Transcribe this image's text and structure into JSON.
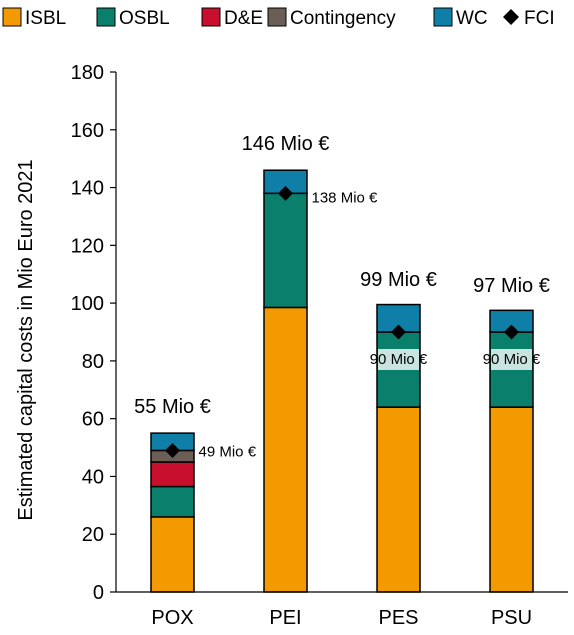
{
  "chart_data": {
    "type": "bar",
    "stacked": true,
    "categories": [
      "POX",
      "PEI",
      "PES",
      "PSU"
    ],
    "ylabel": "Estimated capital costs in Mio Euro 2021",
    "xlabel": "",
    "ylim": [
      0,
      180
    ],
    "yticks": [
      0,
      20,
      40,
      60,
      80,
      100,
      120,
      140,
      160,
      180
    ],
    "grid": false,
    "legend_position": "top",
    "series": [
      {
        "name": "ISBL",
        "color": "#F29A00",
        "values": [
          26,
          98.5,
          64,
          64
        ]
      },
      {
        "name": "OSBL",
        "color": "#0A7F6B",
        "values": [
          10.5,
          39.5,
          26,
          26
        ]
      },
      {
        "name": "D&E",
        "color": "#C8102E",
        "values": [
          8.5,
          0,
          0,
          0
        ]
      },
      {
        "name": "Contingency",
        "color": "#6B5E57",
        "values": [
          4,
          0,
          0,
          0
        ]
      },
      {
        "name": "WC",
        "color": "#0F7FA7",
        "values": [
          6,
          8,
          9.5,
          7.5
        ]
      }
    ],
    "fci": {
      "name": "FCI",
      "values": [
        49,
        138,
        90,
        90
      ],
      "labels": [
        "49 Mio €",
        "138 Mio €",
        "90 Mio €",
        "90 Mio €"
      ]
    },
    "totals": {
      "values": [
        55,
        146,
        99,
        97
      ],
      "labels": [
        "55 Mio €",
        "146 Mio €",
        "99 Mio €",
        "97 Mio €"
      ]
    }
  }
}
